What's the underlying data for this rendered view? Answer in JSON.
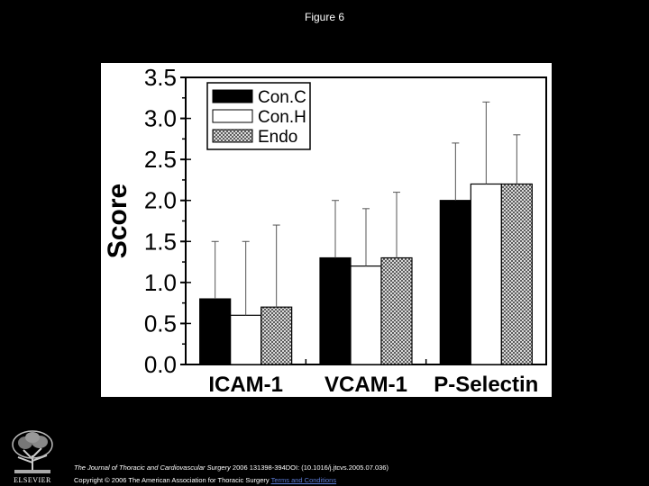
{
  "page": {
    "title": "Figure 6",
    "citation_journal": "The Journal of Thoracic and Cardiovascular Surgery",
    "citation_rest": " 2006 131398-394DOI: (10.1016/j.jtcvs.2005.07.036)",
    "copyright_text": "Copyright © 2006 The American Association for Thoracic Surgery",
    "copyright_link": "Terms and Conditions",
    "publisher_logo_text": "ELSEVIER"
  },
  "chart_data": {
    "type": "bar",
    "categories": [
      "ICAM-1",
      "VCAM-1",
      "P-Selectin"
    ],
    "ylabel": "Score",
    "xlabel": "",
    "ylim": [
      0,
      3.5
    ],
    "yticks": [
      "0.0",
      "0.5",
      "1.0",
      "1.5",
      "2.0",
      "2.5",
      "3.0",
      "3.5"
    ],
    "legend_position": "top-left",
    "series": [
      {
        "name": "Con.C",
        "values": [
          0.8,
          1.3,
          2.0
        ],
        "errors": [
          0.7,
          0.7,
          0.7
        ],
        "fill": "#000000",
        "pattern": "solid"
      },
      {
        "name": "Con.H",
        "values": [
          0.6,
          1.2,
          2.2
        ],
        "errors": [
          0.9,
          0.7,
          1.0
        ],
        "fill": "#ffffff",
        "pattern": "none"
      },
      {
        "name": "Endo",
        "values": [
          0.7,
          1.3,
          2.2
        ],
        "errors": [
          1.0,
          0.8,
          0.6
        ],
        "fill": "#888888",
        "pattern": "crosshatch"
      }
    ]
  }
}
